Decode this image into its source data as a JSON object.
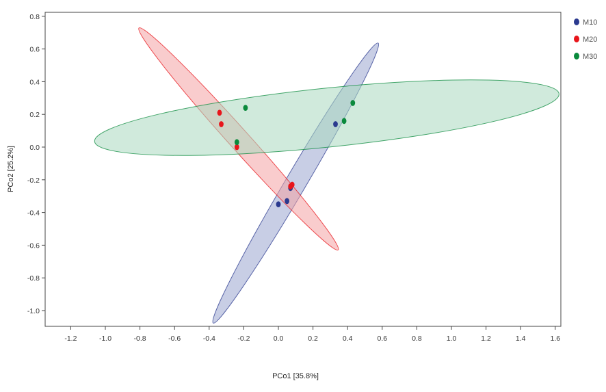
{
  "chart_data": {
    "type": "scatter",
    "xlabel": "PCo1 [35.8%]",
    "ylabel": "PCo2 [25.2%]",
    "xlim": [
      -1.35,
      1.65
    ],
    "ylim": [
      -1.1,
      0.82
    ],
    "xticks": [
      -1.2,
      -1.0,
      -0.8,
      -0.6,
      -0.4,
      -0.2,
      0.0,
      0.2,
      0.4,
      0.6,
      0.8,
      1.0,
      1.2,
      1.4,
      1.6
    ],
    "yticks": [
      0.8,
      0.6,
      0.4,
      0.2,
      0.0,
      -0.2,
      -0.4,
      -0.6,
      -0.8,
      -1.0
    ],
    "xtick_labels": [
      "-1.2",
      "-1.0",
      "-0.8",
      "-0.6",
      "-0.4",
      "-0.2",
      "0.0",
      "0.2",
      "0.4",
      "0.6",
      "0.8",
      "1.0",
      "1.2",
      "1.4",
      "1.6"
    ],
    "ytick_labels": [
      "0.8",
      "0.6",
      "0.4",
      "0.2",
      "0.0",
      "-0.2",
      "-0.4",
      "-0.6",
      "-0.8",
      "-1.0"
    ],
    "grid": false,
    "legend_position": "right",
    "series": [
      {
        "name": "M10",
        "color": "#2b3a8f",
        "fill": "#9aa5cf",
        "points": [
          [
            0.0,
            -0.35
          ],
          [
            0.05,
            -0.33
          ],
          [
            0.07,
            -0.25
          ],
          [
            0.33,
            0.14
          ]
        ],
        "ellipse": {
          "center": [
            0.1,
            -0.22
          ],
          "semi_major": 0.98,
          "semi_minor": 0.06,
          "angle_deg": 60.9
        }
      },
      {
        "name": "M20",
        "color": "#e8151b",
        "fill": "#f4a3a4",
        "points": [
          [
            -0.34,
            0.21
          ],
          [
            -0.33,
            0.14
          ],
          [
            -0.24,
            0.0
          ],
          [
            0.08,
            -0.23
          ],
          [
            0.07,
            -0.24
          ]
        ],
        "ellipse": {
          "center": [
            -0.23,
            0.05
          ],
          "semi_major": 0.89,
          "semi_minor": 0.06,
          "angle_deg": -49.7
        }
      },
      {
        "name": "M30",
        "color": "#0a8a3c",
        "fill": "#a9d8bf",
        "points": [
          [
            -0.19,
            0.24
          ],
          [
            -0.24,
            0.03
          ],
          [
            0.38,
            0.16
          ],
          [
            0.43,
            0.27
          ]
        ],
        "ellipse": {
          "center": [
            0.28,
            0.18
          ],
          "semi_major": 1.35,
          "semi_minor": 0.18,
          "angle_deg": 6.2
        }
      }
    ]
  }
}
